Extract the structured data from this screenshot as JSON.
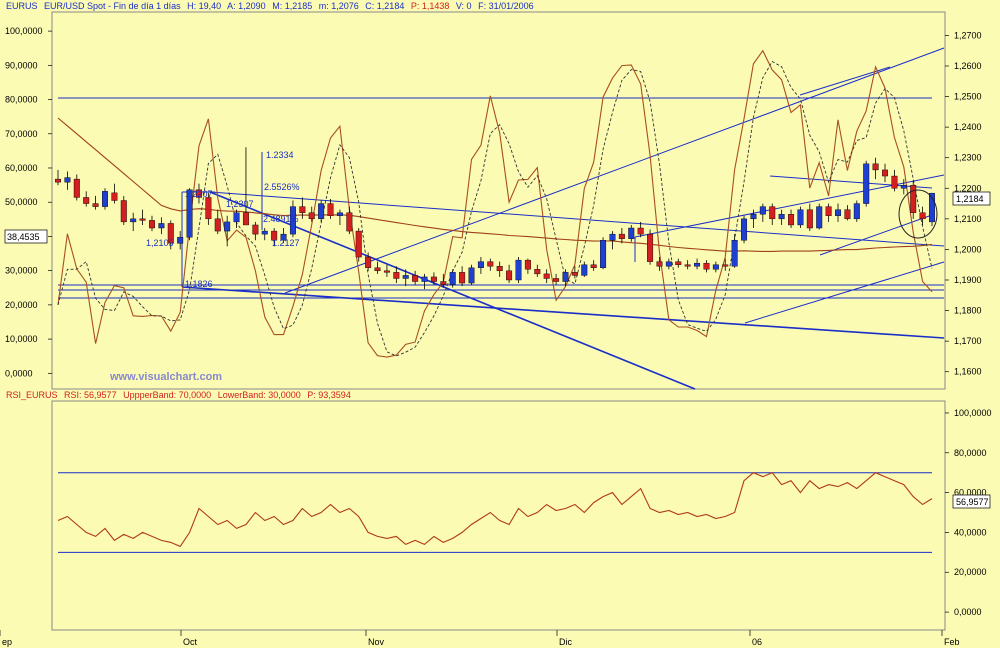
{
  "header": {
    "symbol": "EURUS",
    "description": "EUR/USD Spot - Fin de día 1 días",
    "high": "H: 19,40",
    "open": "A: 1,2090",
    "low": "M: 1,2185",
    "min": "m: 1,2076",
    "close": "C: 1,2184",
    "p": "P: 1,1438",
    "volume": "V: 0",
    "date": "F: 31/01/2006"
  },
  "rsi_header": {
    "name": "RSI_EURUS",
    "value": "RSI: 56,9577",
    "upper": "UppperBand: 70,0000",
    "lower": "LowerBand: 30,0000",
    "p": "P: 93,3594"
  },
  "watermark": "www.visualchart.com",
  "colors": {
    "background": "#fbfbb4",
    "bull": "#1f3fd0",
    "bear": "#d21f1f",
    "trendline": "#1a2fc8",
    "moving_average": "#a0401a",
    "oscillator": "#a8501e",
    "rsi": "#b03a1a"
  },
  "chart_data": [
    {
      "type": "candlestick",
      "name": "price",
      "x_ticks": [
        "ep",
        "Oct",
        "Nov",
        "Dic",
        "06",
        "Feb"
      ],
      "right_axis_ticks": [
        "1,2700",
        "1,2600",
        "1,2500",
        "1,2400",
        "1,2300",
        "1,2200",
        "1,2100",
        "1,2000",
        "1,1900",
        "1,1800",
        "1,1700",
        "1,1600"
      ],
      "left_axis_ticks": [
        "100,0000",
        "90,0000",
        "80,0000",
        "70,0000",
        "60,0000",
        "50,0000",
        "40,0000",
        "30,0000",
        "20,0000",
        "10,0000",
        "0,0000"
      ],
      "ylim_right": [
        1.155,
        1.277
      ],
      "ylim_left": [
        -4,
        105
      ],
      "current_price_label": "1,2184",
      "current_oscillator_label": "38,4535",
      "annotations": [
        "1.2334",
        "2.5526%",
        "1.2207",
        "1.2307",
        "2.4891%",
        "1.2127",
        "1.1826",
        "1,2105"
      ],
      "candles": [
        {
          "o": 1.223,
          "h": 1.226,
          "l": 1.221,
          "c": 1.222
        },
        {
          "o": 1.222,
          "h": 1.2255,
          "l": 1.2195,
          "c": 1.2235
        },
        {
          "o": 1.223,
          "h": 1.2245,
          "l": 1.216,
          "c": 1.217
        },
        {
          "o": 1.217,
          "h": 1.219,
          "l": 1.214,
          "c": 1.215
        },
        {
          "o": 1.215,
          "h": 1.2175,
          "l": 1.213,
          "c": 1.214
        },
        {
          "o": 1.214,
          "h": 1.22,
          "l": 1.213,
          "c": 1.219
        },
        {
          "o": 1.2185,
          "h": 1.2215,
          "l": 1.215,
          "c": 1.216
        },
        {
          "o": 1.216,
          "h": 1.2175,
          "l": 1.208,
          "c": 1.209
        },
        {
          "o": 1.209,
          "h": 1.212,
          "l": 1.206,
          "c": 1.21
        },
        {
          "o": 1.21,
          "h": 1.213,
          "l": 1.208,
          "c": 1.2095
        },
        {
          "o": 1.2095,
          "h": 1.211,
          "l": 1.206,
          "c": 1.207
        },
        {
          "o": 1.207,
          "h": 1.2105,
          "l": 1.205,
          "c": 1.2085
        },
        {
          "o": 1.2085,
          "h": 1.2095,
          "l": 1.2,
          "c": 1.202
        },
        {
          "o": 1.202,
          "h": 1.206,
          "l": 1.2,
          "c": 1.204
        },
        {
          "o": 1.204,
          "h": 1.22,
          "l": 1.203,
          "c": 1.2195
        },
        {
          "o": 1.2195,
          "h": 1.2215,
          "l": 1.215,
          "c": 1.217
        },
        {
          "o": 1.217,
          "h": 1.2185,
          "l": 1.208,
          "c": 1.21
        },
        {
          "o": 1.21,
          "h": 1.213,
          "l": 1.205,
          "c": 1.206
        },
        {
          "o": 1.206,
          "h": 1.211,
          "l": 1.201,
          "c": 1.209
        },
        {
          "o": 1.209,
          "h": 1.213,
          "l": 1.207,
          "c": 1.212
        },
        {
          "o": 1.212,
          "h": 1.2334,
          "l": 1.21,
          "c": 1.208
        },
        {
          "o": 1.208,
          "h": 1.209,
          "l": 1.203,
          "c": 1.205
        },
        {
          "o": 1.205,
          "h": 1.207,
          "l": 1.203,
          "c": 1.206
        },
        {
          "o": 1.206,
          "h": 1.207,
          "l": 1.201,
          "c": 1.203
        },
        {
          "o": 1.203,
          "h": 1.207,
          "l": 1.202,
          "c": 1.205
        },
        {
          "o": 1.205,
          "h": 1.216,
          "l": 1.204,
          "c": 1.214
        },
        {
          "o": 1.214,
          "h": 1.217,
          "l": 1.21,
          "c": 1.212
        },
        {
          "o": 1.212,
          "h": 1.214,
          "l": 1.209,
          "c": 1.21
        },
        {
          "o": 1.21,
          "h": 1.216,
          "l": 1.209,
          "c": 1.215
        },
        {
          "o": 1.215,
          "h": 1.2165,
          "l": 1.21,
          "c": 1.211
        },
        {
          "o": 1.211,
          "h": 1.213,
          "l": 1.208,
          "c": 1.212
        },
        {
          "o": 1.212,
          "h": 1.214,
          "l": 1.205,
          "c": 1.206
        },
        {
          "o": 1.206,
          "h": 1.207,
          "l": 1.196,
          "c": 1.1975
        },
        {
          "o": 1.1975,
          "h": 1.199,
          "l": 1.193,
          "c": 1.194
        },
        {
          "o": 1.194,
          "h": 1.196,
          "l": 1.192,
          "c": 1.193
        },
        {
          "o": 1.193,
          "h": 1.195,
          "l": 1.191,
          "c": 1.1925
        },
        {
          "o": 1.1925,
          "h": 1.1945,
          "l": 1.189,
          "c": 1.1905
        },
        {
          "o": 1.1905,
          "h": 1.1935,
          "l": 1.188,
          "c": 1.1915
        },
        {
          "o": 1.1915,
          "h": 1.193,
          "l": 1.1885,
          "c": 1.1895
        },
        {
          "o": 1.1895,
          "h": 1.192,
          "l": 1.187,
          "c": 1.191
        },
        {
          "o": 1.191,
          "h": 1.1925,
          "l": 1.1885,
          "c": 1.1895
        },
        {
          "o": 1.1895,
          "h": 1.192,
          "l": 1.1875,
          "c": 1.1885
        },
        {
          "o": 1.1885,
          "h": 1.1935,
          "l": 1.1875,
          "c": 1.1925
        },
        {
          "o": 1.1925,
          "h": 1.1945,
          "l": 1.188,
          "c": 1.189
        },
        {
          "o": 1.189,
          "h": 1.195,
          "l": 1.1885,
          "c": 1.194
        },
        {
          "o": 1.194,
          "h": 1.1975,
          "l": 1.192,
          "c": 1.196
        },
        {
          "o": 1.196,
          "h": 1.197,
          "l": 1.193,
          "c": 1.1945
        },
        {
          "o": 1.1945,
          "h": 1.196,
          "l": 1.191,
          "c": 1.193
        },
        {
          "o": 1.193,
          "h": 1.195,
          "l": 1.189,
          "c": 1.19
        },
        {
          "o": 1.19,
          "h": 1.1975,
          "l": 1.189,
          "c": 1.1965
        },
        {
          "o": 1.1965,
          "h": 1.197,
          "l": 1.192,
          "c": 1.1935
        },
        {
          "o": 1.1935,
          "h": 1.195,
          "l": 1.191,
          "c": 1.192
        },
        {
          "o": 1.192,
          "h": 1.1935,
          "l": 1.189,
          "c": 1.1905
        },
        {
          "o": 1.1905,
          "h": 1.192,
          "l": 1.1885,
          "c": 1.1895
        },
        {
          "o": 1.1895,
          "h": 1.1935,
          "l": 1.188,
          "c": 1.1925
        },
        {
          "o": 1.1925,
          "h": 1.1945,
          "l": 1.1905,
          "c": 1.1915
        },
        {
          "o": 1.1915,
          "h": 1.196,
          "l": 1.191,
          "c": 1.195
        },
        {
          "o": 1.195,
          "h": 1.1965,
          "l": 1.193,
          "c": 1.194
        },
        {
          "o": 1.194,
          "h": 1.204,
          "l": 1.1935,
          "c": 1.203
        },
        {
          "o": 1.203,
          "h": 1.206,
          "l": 1.2,
          "c": 1.205
        },
        {
          "o": 1.205,
          "h": 1.207,
          "l": 1.202,
          "c": 1.2035
        },
        {
          "o": 1.2035,
          "h": 1.208,
          "l": 1.2025,
          "c": 1.207
        },
        {
          "o": 1.207,
          "h": 1.209,
          "l": 1.204,
          "c": 1.205
        },
        {
          "o": 1.205,
          "h": 1.2065,
          "l": 1.195,
          "c": 1.196
        },
        {
          "o": 1.196,
          "h": 1.1975,
          "l": 1.193,
          "c": 1.1945
        },
        {
          "o": 1.1945,
          "h": 1.197,
          "l": 1.1935,
          "c": 1.196
        },
        {
          "o": 1.196,
          "h": 1.197,
          "l": 1.194,
          "c": 1.195
        },
        {
          "o": 1.195,
          "h": 1.1965,
          "l": 1.1935,
          "c": 1.1945
        },
        {
          "o": 1.1945,
          "h": 1.197,
          "l": 1.1935,
          "c": 1.1955
        },
        {
          "o": 1.1955,
          "h": 1.1965,
          "l": 1.1925,
          "c": 1.1935
        },
        {
          "o": 1.1935,
          "h": 1.196,
          "l": 1.1925,
          "c": 1.195
        },
        {
          "o": 1.195,
          "h": 1.197,
          "l": 1.193,
          "c": 1.1945
        },
        {
          "o": 1.1945,
          "h": 1.205,
          "l": 1.194,
          "c": 1.203
        },
        {
          "o": 1.203,
          "h": 1.211,
          "l": 1.202,
          "c": 1.21
        },
        {
          "o": 1.21,
          "h": 1.213,
          "l": 1.207,
          "c": 1.2115
        },
        {
          "o": 1.2115,
          "h": 1.215,
          "l": 1.209,
          "c": 1.214
        },
        {
          "o": 1.214,
          "h": 1.215,
          "l": 1.208,
          "c": 1.21
        },
        {
          "o": 1.21,
          "h": 1.213,
          "l": 1.208,
          "c": 1.2115
        },
        {
          "o": 1.2115,
          "h": 1.213,
          "l": 1.207,
          "c": 1.208
        },
        {
          "o": 1.208,
          "h": 1.214,
          "l": 1.207,
          "c": 1.213
        },
        {
          "o": 1.213,
          "h": 1.215,
          "l": 1.206,
          "c": 1.207
        },
        {
          "o": 1.207,
          "h": 1.215,
          "l": 1.2065,
          "c": 1.214
        },
        {
          "o": 1.214,
          "h": 1.215,
          "l": 1.209,
          "c": 1.211
        },
        {
          "o": 1.211,
          "h": 1.215,
          "l": 1.209,
          "c": 1.213
        },
        {
          "o": 1.213,
          "h": 1.2145,
          "l": 1.2095,
          "c": 1.21
        },
        {
          "o": 1.21,
          "h": 1.216,
          "l": 1.209,
          "c": 1.215
        },
        {
          "o": 1.215,
          "h": 1.229,
          "l": 1.214,
          "c": 1.228
        },
        {
          "o": 1.228,
          "h": 1.23,
          "l": 1.223,
          "c": 1.226
        },
        {
          "o": 1.226,
          "h": 1.228,
          "l": 1.222,
          "c": 1.224
        },
        {
          "o": 1.224,
          "h": 1.226,
          "l": 1.219,
          "c": 1.22
        },
        {
          "o": 1.22,
          "h": 1.223,
          "l": 1.218,
          "c": 1.221
        },
        {
          "o": 1.221,
          "h": 1.2225,
          "l": 1.21,
          "c": 1.212
        },
        {
          "o": 1.212,
          "h": 1.214,
          "l": 1.208,
          "c": 1.21
        },
        {
          "o": 1.209,
          "h": 1.2185,
          "l": 1.2076,
          "c": 1.2184
        }
      ]
    },
    {
      "type": "line",
      "name": "RSI",
      "x_ticks": [
        "ep",
        "Oct",
        "Nov",
        "Dic",
        "06",
        "Feb"
      ],
      "ticks": [
        "100,0000",
        "80,0000",
        "60,0000",
        "40,0000",
        "20,0000",
        "0,0000"
      ],
      "ylim": [
        -8,
        105
      ],
      "upper_band": 70,
      "lower_band": 30,
      "current_label": "56,9577",
      "values": [
        46,
        48,
        44,
        40,
        38,
        42,
        36,
        39,
        37,
        40,
        38,
        36,
        35,
        33,
        40,
        52,
        48,
        44,
        46,
        42,
        44,
        50,
        46,
        48,
        44,
        46,
        52,
        48,
        50,
        54,
        50,
        52,
        48,
        40,
        38,
        37,
        38,
        34,
        36,
        34,
        38,
        35,
        37,
        40,
        44,
        47,
        50,
        46,
        44,
        52,
        48,
        50,
        54,
        51,
        52,
        54,
        50,
        55,
        58,
        60,
        54,
        58,
        62,
        52,
        50,
        51,
        49,
        50,
        48,
        49,
        47,
        48,
        50,
        66,
        70,
        68,
        70,
        64,
        66,
        60,
        66,
        62,
        64,
        63,
        65,
        62,
        66,
        70,
        68,
        66,
        64,
        58,
        54,
        57
      ]
    }
  ]
}
